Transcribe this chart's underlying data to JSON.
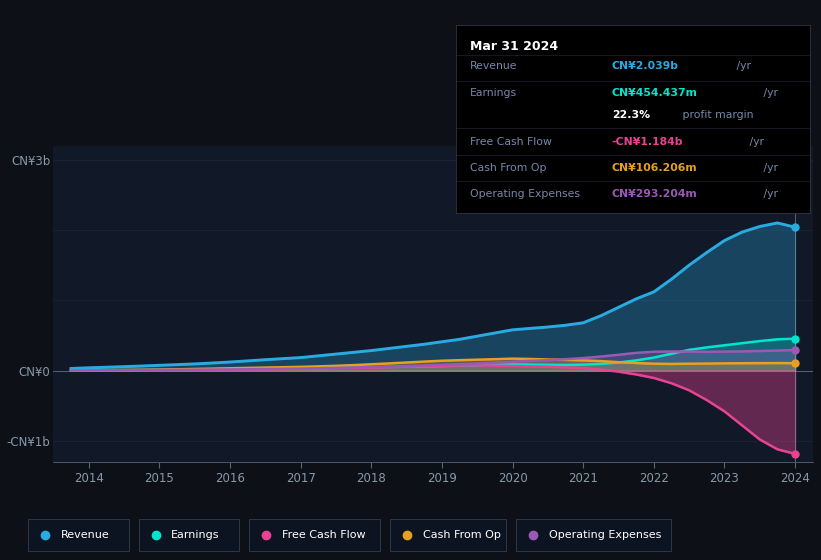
{
  "background_color": "#0d1117",
  "plot_bg_color": "#111827",
  "years": [
    2013.75,
    2014.0,
    2014.25,
    2014.5,
    2014.75,
    2015.0,
    2015.25,
    2015.5,
    2015.75,
    2016.0,
    2016.25,
    2016.5,
    2016.75,
    2017.0,
    2017.25,
    2017.5,
    2017.75,
    2018.0,
    2018.25,
    2018.5,
    2018.75,
    2019.0,
    2019.25,
    2019.5,
    2019.75,
    2020.0,
    2020.25,
    2020.5,
    2020.75,
    2021.0,
    2021.25,
    2021.5,
    2021.75,
    2022.0,
    2022.25,
    2022.5,
    2022.75,
    2023.0,
    2023.25,
    2023.5,
    2023.75,
    2024.0
  ],
  "revenue": [
    0.03,
    0.04,
    0.048,
    0.056,
    0.065,
    0.075,
    0.085,
    0.095,
    0.108,
    0.122,
    0.138,
    0.155,
    0.17,
    0.185,
    0.21,
    0.235,
    0.26,
    0.285,
    0.315,
    0.345,
    0.375,
    0.41,
    0.445,
    0.49,
    0.535,
    0.58,
    0.6,
    0.62,
    0.645,
    0.68,
    0.78,
    0.9,
    1.02,
    1.12,
    1.3,
    1.5,
    1.68,
    1.85,
    1.97,
    2.05,
    2.1,
    2.039
  ],
  "earnings": [
    0.004,
    0.006,
    0.007,
    0.008,
    0.009,
    0.011,
    0.013,
    0.015,
    0.017,
    0.019,
    0.022,
    0.025,
    0.028,
    0.032,
    0.036,
    0.04,
    0.044,
    0.048,
    0.052,
    0.056,
    0.06,
    0.065,
    0.07,
    0.076,
    0.082,
    0.088,
    0.085,
    0.082,
    0.08,
    0.085,
    0.095,
    0.115,
    0.145,
    0.185,
    0.24,
    0.295,
    0.33,
    0.36,
    0.39,
    0.42,
    0.445,
    0.454
  ],
  "free_cash_flow": [
    0.002,
    0.003,
    0.004,
    0.005,
    0.006,
    0.008,
    0.01,
    0.012,
    0.014,
    0.016,
    0.018,
    0.02,
    0.022,
    0.025,
    0.03,
    0.035,
    0.038,
    0.042,
    0.048,
    0.055,
    0.062,
    0.068,
    0.072,
    0.075,
    0.07,
    0.065,
    0.06,
    0.055,
    0.045,
    0.035,
    0.015,
    -0.015,
    -0.055,
    -0.105,
    -0.18,
    -0.28,
    -0.42,
    -0.58,
    -0.78,
    -0.98,
    -1.12,
    -1.184
  ],
  "cash_from_op": [
    0.003,
    0.005,
    0.006,
    0.008,
    0.01,
    0.013,
    0.018,
    0.023,
    0.028,
    0.033,
    0.038,
    0.043,
    0.048,
    0.053,
    0.06,
    0.068,
    0.078,
    0.09,
    0.102,
    0.115,
    0.128,
    0.14,
    0.148,
    0.155,
    0.162,
    0.17,
    0.165,
    0.158,
    0.152,
    0.145,
    0.135,
    0.12,
    0.108,
    0.098,
    0.095,
    0.098,
    0.1,
    0.103,
    0.105,
    0.106,
    0.107,
    0.106
  ],
  "operating_expenses": [
    0.002,
    0.004,
    0.005,
    0.006,
    0.007,
    0.009,
    0.011,
    0.013,
    0.015,
    0.017,
    0.019,
    0.022,
    0.025,
    0.028,
    0.033,
    0.038,
    0.044,
    0.05,
    0.057,
    0.065,
    0.073,
    0.082,
    0.092,
    0.103,
    0.115,
    0.128,
    0.138,
    0.148,
    0.162,
    0.178,
    0.2,
    0.225,
    0.252,
    0.268,
    0.272,
    0.27,
    0.268,
    0.27,
    0.273,
    0.278,
    0.285,
    0.293
  ],
  "revenue_color": "#29abe2",
  "earnings_color": "#00e5cc",
  "free_cash_flow_color": "#e84393",
  "cash_from_op_color": "#e8a020",
  "operating_expenses_color": "#9b59b6",
  "grid_color": "#1a2535",
  "zero_line_color": "#556677",
  "tick_color": "#556677",
  "label_color": "#8899aa",
  "x_min": 2013.5,
  "x_max": 2024.25,
  "y_min": -1.3,
  "y_max": 3.2,
  "xtick_years": [
    2014,
    2015,
    2016,
    2017,
    2018,
    2019,
    2020,
    2021,
    2022,
    2023,
    2024
  ],
  "tooltip_title": "Mar 31 2024",
  "tooltip_rows": [
    {
      "label": "Revenue",
      "value": "CN¥2.039b",
      "suffix": " /yr",
      "color": "#29abe2",
      "indent": false
    },
    {
      "label": "Earnings",
      "value": "CN¥454.437m",
      "suffix": " /yr",
      "color": "#00e5cc",
      "indent": false
    },
    {
      "label": "",
      "value": "22.3%",
      "suffix": " profit margin",
      "color": "#ffffff",
      "indent": true
    },
    {
      "label": "Free Cash Flow",
      "value": "-CN¥1.184b",
      "suffix": " /yr",
      "color": "#e84393",
      "indent": false
    },
    {
      "label": "Cash From Op",
      "value": "CN¥106.206m",
      "suffix": " /yr",
      "color": "#e8a020",
      "indent": false
    },
    {
      "label": "Operating Expenses",
      "value": "CN¥293.204m",
      "suffix": " /yr",
      "color": "#9b59b6",
      "indent": false
    }
  ],
  "legend_items": [
    {
      "label": "Revenue",
      "color": "#29abe2"
    },
    {
      "label": "Earnings",
      "color": "#00e5cc"
    },
    {
      "label": "Free Cash Flow",
      "color": "#e84393"
    },
    {
      "label": "Cash From Op",
      "color": "#e8a020"
    },
    {
      "label": "Operating Expenses",
      "color": "#9b59b6"
    }
  ],
  "figsize": [
    8.21,
    5.6
  ],
  "dpi": 100
}
